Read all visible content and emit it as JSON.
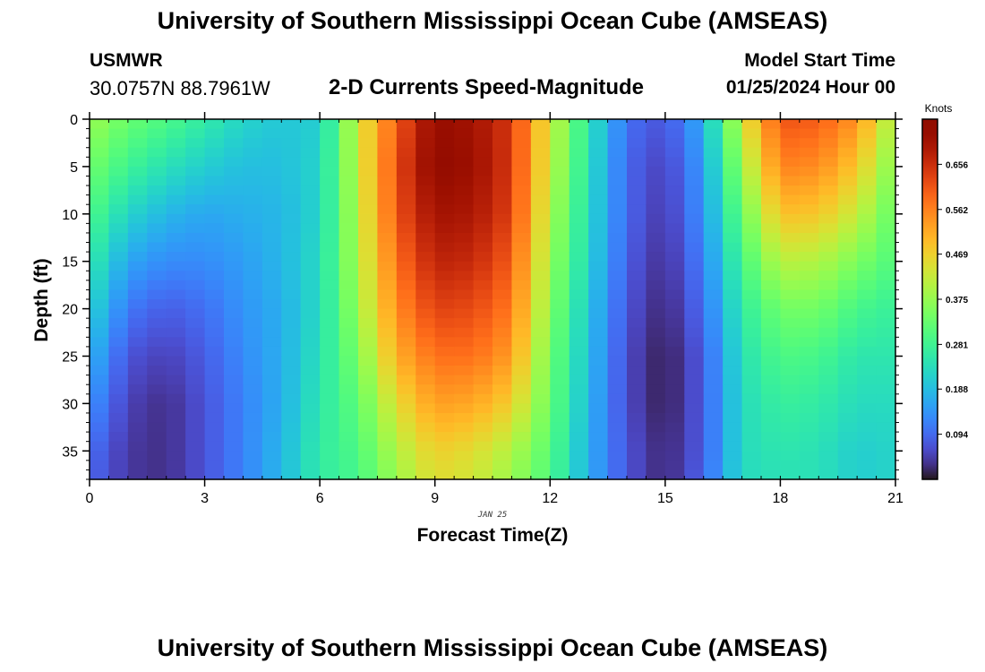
{
  "header": {
    "title": "University of Southern Mississippi Ocean Cube (AMSEAS)",
    "footer_title": "University of Southern Mississippi Ocean Cube (AMSEAS)",
    "station": "USMWR",
    "coordinates": "30.0757N  88.7961W",
    "subtitle": "2-D Currents Speed-Magnitude",
    "start_label": "Model Start Time",
    "start_value": "01/25/2024 Hour 00"
  },
  "chart_data": {
    "type": "heatmap",
    "title": "2-D Currents Speed-Magnitude",
    "xlabel": "Forecast Time(Z)",
    "ylabel": "Depth (ft)",
    "date_label": "JAN 25",
    "xlim": [
      0,
      21
    ],
    "ylim": [
      0,
      38
    ],
    "y_inverted": true,
    "x_ticks": [
      0,
      3,
      6,
      9,
      12,
      15,
      18,
      21
    ],
    "y_ticks": [
      0,
      5,
      10,
      15,
      20,
      25,
      30,
      35
    ],
    "colorbar": {
      "label": "Knots",
      "range": [
        0,
        0.75
      ],
      "ticks": [
        "0.094",
        "0.188",
        "0.281",
        "0.375",
        "0.469",
        "0.562",
        "0.656"
      ]
    },
    "time_hours": [
      0,
      1,
      2,
      3,
      4,
      5,
      6,
      7,
      8,
      9,
      10,
      11,
      12,
      13,
      14,
      15,
      16,
      17,
      18,
      19,
      20,
      21
    ],
    "depths_ft": [
      0,
      5,
      10,
      15,
      20,
      25,
      30,
      35,
      38
    ],
    "speed_knots": [
      [
        0.38,
        0.34,
        0.3,
        0.26,
        0.22,
        0.18,
        0.14,
        0.1,
        0.09
      ],
      [
        0.33,
        0.28,
        0.22,
        0.16,
        0.11,
        0.07,
        0.05,
        0.04,
        0.04
      ],
      [
        0.3,
        0.24,
        0.18,
        0.13,
        0.08,
        0.05,
        0.03,
        0.03,
        0.03
      ],
      [
        0.26,
        0.21,
        0.16,
        0.13,
        0.1,
        0.08,
        0.07,
        0.07,
        0.07
      ],
      [
        0.22,
        0.19,
        0.17,
        0.15,
        0.14,
        0.13,
        0.12,
        0.12,
        0.12
      ],
      [
        0.2,
        0.19,
        0.18,
        0.18,
        0.17,
        0.17,
        0.17,
        0.18,
        0.18
      ],
      [
        0.21,
        0.22,
        0.22,
        0.23,
        0.23,
        0.24,
        0.25,
        0.26,
        0.26
      ],
      [
        0.43,
        0.42,
        0.41,
        0.4,
        0.38,
        0.35,
        0.32,
        0.3,
        0.29
      ],
      [
        0.6,
        0.62,
        0.61,
        0.58,
        0.55,
        0.51,
        0.45,
        0.4,
        0.38
      ],
      [
        0.72,
        0.73,
        0.7,
        0.67,
        0.63,
        0.58,
        0.53,
        0.47,
        0.45
      ],
      [
        0.7,
        0.71,
        0.69,
        0.66,
        0.62,
        0.58,
        0.52,
        0.45,
        0.43
      ],
      [
        0.64,
        0.64,
        0.63,
        0.6,
        0.57,
        0.53,
        0.47,
        0.4,
        0.38
      ],
      [
        0.43,
        0.42,
        0.4,
        0.38,
        0.36,
        0.34,
        0.33,
        0.31,
        0.3
      ],
      [
        0.25,
        0.24,
        0.23,
        0.22,
        0.2,
        0.19,
        0.18,
        0.17,
        0.17
      ],
      [
        0.1,
        0.09,
        0.09,
        0.08,
        0.07,
        0.06,
        0.06,
        0.07,
        0.07
      ],
      [
        0.07,
        0.05,
        0.04,
        0.03,
        0.02,
        0.01,
        0.01,
        0.02,
        0.02
      ],
      [
        0.17,
        0.15,
        0.14,
        0.12,
        0.1,
        0.08,
        0.08,
        0.08,
        0.09
      ],
      [
        0.43,
        0.38,
        0.33,
        0.29,
        0.26,
        0.24,
        0.23,
        0.23,
        0.23
      ],
      [
        0.61,
        0.56,
        0.49,
        0.41,
        0.34,
        0.3,
        0.27,
        0.25,
        0.24
      ],
      [
        0.6,
        0.55,
        0.48,
        0.4,
        0.34,
        0.29,
        0.26,
        0.24,
        0.24
      ],
      [
        0.54,
        0.48,
        0.42,
        0.35,
        0.29,
        0.25,
        0.23,
        0.21,
        0.21
      ],
      [
        0.38,
        0.35,
        0.32,
        0.3,
        0.27,
        0.25,
        0.23,
        0.22,
        0.22
      ]
    ]
  }
}
